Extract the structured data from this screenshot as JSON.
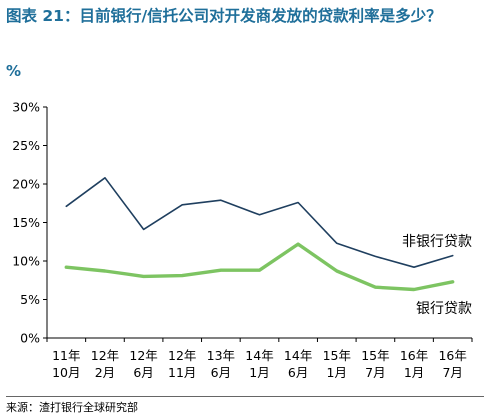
{
  "title": "图表 21：目前银行/信托公司对开发商发放的贷款利率是多少？",
  "unit_label": "%",
  "source": "来源：渣打银行全球研究部",
  "colors": {
    "title": "#1f6f9a",
    "series_nonbank": "#1f3f5f",
    "series_bank": "#7dc462"
  },
  "chart_data": {
    "type": "line",
    "categories": [
      [
        "11年",
        "10月"
      ],
      [
        "12年",
        "2月"
      ],
      [
        "12年",
        "6月"
      ],
      [
        "12年",
        "11月"
      ],
      [
        "13年",
        "6月"
      ],
      [
        "14年",
        "1月"
      ],
      [
        "14年",
        "6月"
      ],
      [
        "15年",
        "1月"
      ],
      [
        "15年",
        "7月"
      ],
      [
        "16年",
        "1月"
      ],
      [
        "16年",
        "7月"
      ]
    ],
    "series": [
      {
        "name": "非银行贷款",
        "values": [
          17.1,
          20.8,
          14.1,
          17.3,
          17.9,
          16.0,
          17.6,
          12.3,
          10.6,
          9.2,
          10.7
        ]
      },
      {
        "name": "银行贷款",
        "values": [
          9.2,
          8.7,
          8.0,
          8.1,
          8.8,
          8.8,
          12.2,
          8.7,
          6.6,
          6.3,
          7.3
        ]
      }
    ],
    "yticks": [
      "0%",
      "5%",
      "10%",
      "15%",
      "20%",
      "25%",
      "30%"
    ],
    "ylim": [
      0,
      30
    ],
    "grid": false,
    "legend": "inline labels at right end of each line"
  }
}
